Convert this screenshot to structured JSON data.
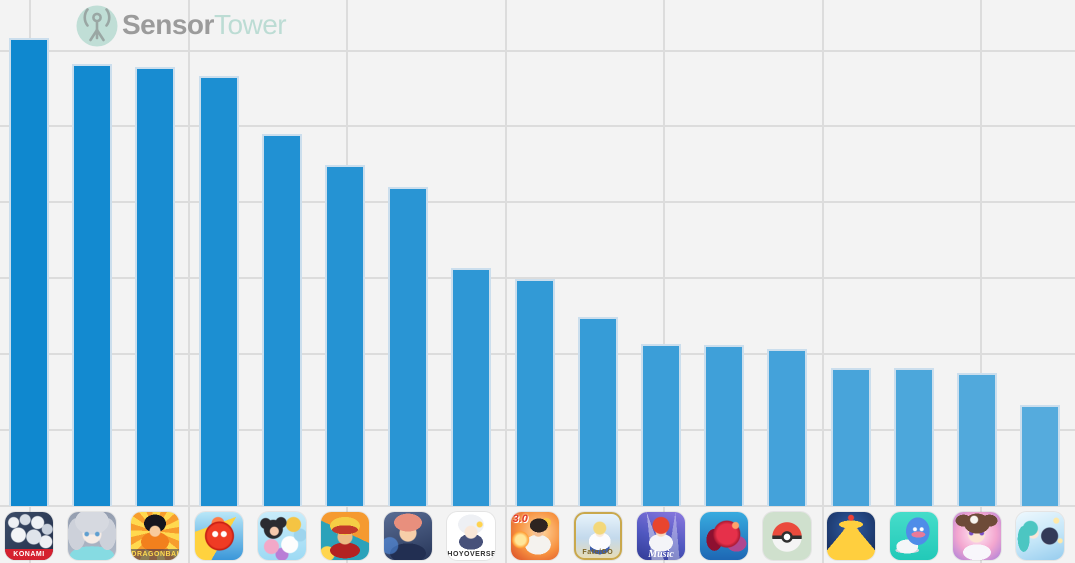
{
  "brand": {
    "logo_text_primary": "Sensor",
    "logo_text_secondary": "Tower",
    "logo_primary_color": "#9b9b9b",
    "logo_secondary_color": "#bcdcd4",
    "logo_circle_color": "#c0ded6",
    "logo_glyph_color": "#9aa7a4"
  },
  "chart_data": {
    "type": "bar",
    "title": "",
    "xlabel": "",
    "ylabel": "",
    "axis_labels_visible": false,
    "legend": null,
    "grid": true,
    "background_color": "#f3f3f3",
    "gridline_color": "#dcdcdc",
    "bar_color_start": "#0f88cf",
    "bar_color_end": "#55abdd",
    "bar_border_color": "#cbdeed",
    "value_units": "relative units (1 = one horizontal gridline interval; y-axis unlabeled in image)",
    "ylim": [
      0,
      6.5
    ],
    "categories": [
      "Pro Baseball Spirits A (KONAMI)",
      "Gakuen iDOLM@STER (silver-haired idol girl)",
      "Dragon Ball Z Dokkan Battle",
      "Monster Strike",
      "LINE: Disney Tsum Tsum",
      "One Piece Treasure Cruise",
      "Jujutsu Kaisen Phantom Parade",
      "Genshin Impact (HOYOVERSE)",
      "RPG app with 3.0 badge",
      "Fate/Grand Order",
      "Ensemble Stars!! Music",
      "Puzzle & Dragons",
      "Pokémon GO",
      "Royal Match",
      "Dragon Quest Walk",
      "Uma Musume Pretty Derby",
      "Project Sekai Colorful Stage"
    ],
    "values": [
      6.17,
      5.82,
      5.78,
      5.66,
      4.9,
      4.49,
      4.2,
      3.14,
      2.99,
      2.49,
      2.14,
      2.12,
      2.07,
      1.82,
      1.82,
      1.75,
      1.33
    ]
  },
  "app_icons": [
    {
      "name": "app-icon-pro-baseball-spirits",
      "label": "Pro Baseball Spirits A (KONAMI)",
      "band_text": "KONAMI",
      "band_bg": "#d5202f",
      "band_color": "#ffffff",
      "band_class": "tiny",
      "bg": "radial-gradient(circle at 18% 22%, #eef1f5 0 5px, transparent 6px), radial-gradient(circle at 42% 16%, #d7dde6 0 5px, transparent 6px), radial-gradient(circle at 68% 22%, #eef1f5 0 6px, transparent 7px), radial-gradient(circle at 88% 36%, #c9d1dd 0 5px, transparent 6px), radial-gradient(circle at 28% 48%, #f2f4f7 0 7px, transparent 8px), radial-gradient(circle at 60% 52%, #dfe4eb 0 7px, transparent 8px), radial-gradient(circle at 85% 62%, #eef0f4 0 6px, transparent 7px), linear-gradient(135deg, #3c4c68 0%, #232f49 100%)"
    },
    {
      "name": "app-icon-idol-girl",
      "label": "Gakuen iDOLM@STER (best guess)",
      "bg": "radial-gradient(circle at 39% 46%, #5f9fd0 0 1.8px, transparent 2.8px), radial-gradient(circle at 61% 46%, #5f9fd0 0 1.8px, transparent 2.8px), radial-gradient(ellipse 17px 13px at 50% 20%, #d6d9e0 0 99%, transparent 100%), radial-gradient(circle at 50% 46%, #f6ece6 0 9px, transparent 10px), radial-gradient(ellipse 9px 16px at 18% 46%, #cdd1da 0 99%, transparent 100%), radial-gradient(ellipse 9px 16px at 82% 46%, #cdd1da 0 99%, transparent 100%), radial-gradient(ellipse 22px 9px at 50% 90%, #86dbe2 0 99%, transparent 100%), linear-gradient(180deg, #939daf 0%, #b3bcca 100%)"
    },
    {
      "name": "app-icon-dokkan-battle",
      "label": "Dragon Ball Z Dokkan Battle",
      "band_text": "DRAGONBALL Z",
      "band_bg": "rgba(25,35,90,0.5)",
      "band_color": "#ffd94f",
      "band_class": "tiny",
      "bg": "radial-gradient(circle at 50% 40%, #f8cb9d 0 5px, transparent 6px), radial-gradient(ellipse 11px 9px at 50% 24%, #16161e 0 99%, transparent 100%), radial-gradient(ellipse 14px 10px at 50% 62%, #f2801d 0 99%, transparent 100%), repeating-conic-gradient(from 0deg at 50% 40%, #ffd94f 0 16deg, #f79d2d 16deg 32deg)"
    },
    {
      "name": "app-icon-monster-strike",
      "label": "Monster Strike",
      "bg": "radial-gradient(circle at 42% 46%, #ffffff 0 2.5px, transparent 3.5px), radial-gradient(circle at 60% 46%, #ffffff 0 2.5px, transparent 3.5px), radial-gradient(circle at 51% 50%, #ef3b24 0 12px, #c01910 14px, transparent 15px), radial-gradient(circle at 48% 24%, #ff7a45 0 6px, transparent 7px), conic-gradient(from 210deg at 86% 10%, #ffd23e 0 40deg, transparent 40deg), linear-gradient(180deg, #b8e7f8 0%, #3a97d9 100%)"
    },
    {
      "name": "app-icon-tsum-tsum",
      "label": "LINE: Disney Tsum Tsum",
      "bg": "radial-gradient(circle at 34% 40%, #f6c9ad 0 4px, transparent 5px), radial-gradient(circle at 32% 36%, #2b2b30 0 9px, transparent 10px), radial-gradient(circle at 16% 24%, #2b2b30 0 5px, transparent 6px), radial-gradient(circle at 48% 22%, #2b2b30 0 5px, transparent 6px), radial-gradient(circle at 74% 26%, #f5c443 0 7px, transparent 8px), radial-gradient(circle at 88% 48%, #9ed4ed 0 6px, transparent 7px), radial-gradient(circle at 66% 68%, #fdfdfd 0 8px, transparent 9px), radial-gradient(circle at 28% 72%, #f2a8c8 0 7px, transparent 8px), radial-gradient(circle at 50% 88%, #b97ed6 0 6px, transparent 7px), linear-gradient(180deg, #c8ecfa 0%, #9ddaf4 100%)"
    },
    {
      "name": "app-icon-one-piece",
      "label": "One Piece Treasure Cruise",
      "bg": "radial-gradient(ellipse 13px 4.5px at 50% 37%, #c23a2a 0 99%, transparent 100%), radial-gradient(ellipse 15px 9px at 50% 29%, #f5ce45 0 99%, transparent 100%), radial-gradient(circle at 50% 52%, #edba84 0 7px, transparent 8px), radial-gradient(ellipse 15px 8px at 50% 80%, #b32222 0 99%, transparent 100%), radial-gradient(circle at 13% 87%, #ffd54e 0 7px, transparent 8px), linear-gradient(205deg, #f59a30 0 44%, #2ba2ba 44%)"
    },
    {
      "name": "app-icon-jujutsu-kaisen",
      "label": "Jujutsu Kaisen Phantom Parade",
      "bg": "radial-gradient(ellipse 14px 9px at 50% 22%, #e88f7d 0 99%, transparent 100%), radial-gradient(circle at 50% 44%, #f6cfa9 0 8px, transparent 9px), radial-gradient(circle at 12% 70%, rgba(90,160,255,0.5) 0 8px, transparent 9px), radial-gradient(ellipse 18px 10px at 50% 86%, #222f52 0 99%, transparent 100%), linear-gradient(160deg, #5a6d94 0%, #273659 100%)"
    },
    {
      "name": "app-icon-genshin-impact",
      "label": "Genshin Impact",
      "band_text": "HOYOVERSE",
      "band_bg": "transparent",
      "band_color": "#2e2e2e",
      "band_class": "tiny",
      "bg": "radial-gradient(circle at 68% 26%, #ffd34e 0 2.5px, transparent 3.5px), radial-gradient(circle at 50% 42%, #fae8d8 0 6px, transparent 7px), radial-gradient(ellipse 13px 10px at 50% 26%, #eef0f4 0 99%, transparent 100%), radial-gradient(ellipse 12px 8px at 50% 62%, #47517a 0 99%, transparent 100%), linear-gradient(#ffffff, #ffffff)"
    },
    {
      "name": "app-icon-rpg-3-0",
      "label": "RPG app with 3.0 version badge",
      "corner_text": "3.0",
      "corner_color": "#e23a28",
      "bg": "radial-gradient(circle at 20% 58%, #ffe699 0 5px, #ff9f36 8px, transparent 9px), radial-gradient(ellipse 9px 7px at 58% 28%, #2e2420 0 99%, transparent 100%), radial-gradient(circle at 57% 40%, #f2bd92 0 5px, transparent 6px), radial-gradient(ellipse 13px 10px at 56% 68%, #f4f2ee 0 99%, transparent 100%), radial-gradient(circle at 74% 22%, #f7c844 0 4px, transparent 5px), radial-gradient(circle at 60% 42%, #ffd9a1 0%, #f79240 55%, #d84a28 100%)"
    },
    {
      "name": "app-icon-fate-grand-order",
      "label": "Fate/Grand Order",
      "border": "2.5px solid #c9a84c",
      "band_text": "Fate/GO",
      "band_bg": "transparent",
      "band_color": "#7d6426",
      "band_class": "tiny",
      "bg": "radial-gradient(circle at 54% 32%, #f3d87a 0 6px, transparent 7px), radial-gradient(circle at 54% 42%, #fae9da 0 4px, transparent 5px), radial-gradient(ellipse 11px 9px at 54% 62%, #fcfcfe 0 99%, transparent 100%), radial-gradient(ellipse 10px 6px at 54% 78%, #3f5fae 0 99%, transparent 100%), linear-gradient(180deg, #e7f3fb 0%, #c3d9ec 55%, #e6dcb8 100%)"
    },
    {
      "name": "app-icon-ensemble-stars-music",
      "label": "Ensemble Stars!! Music",
      "band_text": "Music",
      "band_bg": "transparent",
      "band_color": "#ffffff",
      "band_class": "script",
      "bg": "radial-gradient(circle at 50% 28%, #e8452e 0 8px, transparent 9px), radial-gradient(circle at 50% 40%, #f8d9bd 0 5px, transparent 6px), radial-gradient(ellipse 12px 9px at 50% 64%, #f4f4f8 0 99%, transparent 100%), conic-gradient(from 160deg at 20% 0%, rgba(255,255,255,0.45) 0 14deg, transparent 14deg), conic-gradient(from 175deg at 80% 0%, rgba(255,255,255,0.35) 0 14deg, transparent 14deg), linear-gradient(200deg, #8b79e0 0%, #5058c0 55%, #323c96 100%)"
    },
    {
      "name": "app-icon-puzzle-and-dragons",
      "label": "Puzzle & Dragons",
      "bg": "radial-gradient(circle at 74% 28%, #ffa36a 0 3px, transparent 4px), radial-gradient(circle at 56% 46%, #e6304a 0 10px, #ad1b34 13px, transparent 14px), radial-gradient(ellipse 8px 11px at 30% 58%, #8e1030 0 99%, transparent 100%), radial-gradient(ellipse 10px 8px at 76% 66%, #b0478f 0 99%, transparent 100%), linear-gradient(180deg, #38abdf 0%, #1d67b4 100%)"
    },
    {
      "name": "app-icon-pokemon-go",
      "label": "Pokémon GO",
      "bg": "radial-gradient(circle at 50% 52%, #ffffff 0 3px, #2f2f2f 3.5px 5.5px, transparent 6px), radial-gradient(circle at 50% 52%, transparent 0 14.5px, #cfe0cd 15px), linear-gradient(180deg, transparent 0 49%, #2f2f2f 49% 56%, transparent 56%), conic-gradient(from 90deg at 50% 52%, #f4f4f4 0 180deg, #ea4b3c 180deg), linear-gradient(#cfe0cd, #cfe0cd)"
    },
    {
      "name": "app-icon-royal-match",
      "label": "Royal Match",
      "bg": "radial-gradient(circle at 50% 12%, #ef4136 0 2.5px, transparent 3.5px), conic-gradient(from 140deg at 50% 20%, #ffcf3e 0 80deg, transparent 80deg), radial-gradient(ellipse 12px 4px at 50% 26%, #ffcf3e 0 99%, transparent 100%), radial-gradient(circle at 38% 44%, #3a2c20 0 1.5px, transparent 2.5px), radial-gradient(circle at 62% 44%, #3a2c20 0 1.5px, transparent 2.5px), radial-gradient(circle at 50% 46%, #f0b37e 0 8px, transparent 9px), radial-gradient(ellipse 8px 5px at 50% 58%, #c9742e 0 99%, transparent 100%), radial-gradient(ellipse 13px 10px at 50% 74%, #f2eee6 0 99%, transparent 100%), radial-gradient(circle at 50% 34%, #2f5ca3 0%, #1a3364 75%, #132548 100%)"
    },
    {
      "name": "app-icon-dragon-quest-walk",
      "label": "Dragon Quest Walk",
      "bg": "radial-gradient(circle at 52% 36%, #ffffff 0 1.5px, transparent 2.5px), radial-gradient(circle at 66% 36%, #ffffff 0 1.5px, transparent 2.5px), radial-gradient(ellipse 7px 3px at 59% 47%, #e87a9a 0 99%, transparent 100%), radial-gradient(ellipse 12px 14px at 58% 40%, #4f8de8 0 97%, transparent 100%), radial-gradient(ellipse 11px 7px at 36% 72%, #f4f6f8 0 99%, transparent 100%), radial-gradient(ellipse 12px 3px at 36% 80%, #cfd6dd 0 99%, transparent 100%), linear-gradient(180deg, #46ddca 0%, #22c9b8 100%)"
    },
    {
      "name": "app-icon-uma-musume",
      "label": "Uma Musume Pretty Derby",
      "bg": "radial-gradient(circle at 44% 16%, #f7f4ef 0 3.5px, transparent 4.5px), radial-gradient(ellipse 13px 10px at 50% 24%, #6e4b38 0 99%, transparent 100%), radial-gradient(circle at 38% 44%, #7a4ec7 0 1.8px, transparent 2.8px), radial-gradient(circle at 60% 44%, #7a4ec7 0 1.8px, transparent 2.8px), radial-gradient(circle at 49% 46%, #fbe4d3 0 8px, transparent 9px), radial-gradient(ellipse 8px 6px at 22% 18%, #6e4b38 0 99%, transparent 100%), radial-gradient(ellipse 8px 6px at 76% 18%, #6e4b38 0 99%, transparent 100%), radial-gradient(ellipse 14px 8px at 50% 84%, #f8f6fb 0 99%, transparent 100%), radial-gradient(circle at 50% 45%, #ffeaf5 0%, #f3a6cf 55%, #a97fd9 100%)"
    },
    {
      "name": "app-icon-project-sekai",
      "label": "Project Sekai Colorful Stage (Hatsune Miku)",
      "bg": "radial-gradient(circle at 30% 34%, #4cc6c2 0 7px, transparent 8px), radial-gradient(ellipse 6px 13px at 16% 56%, #4cc6c2 0 99%, transparent 100%), radial-gradient(circle at 36% 44%, #fbe6d8 0 5px, transparent 6px), radial-gradient(circle at 70% 50%, #333a58 0 8px, transparent 9px), radial-gradient(circle at 66% 58%, #fbe6d8 0 4px, transparent 5px), radial-gradient(circle at 84% 18%, #ffe9a8 0 2.5px, transparent 3.5px), radial-gradient(circle at 92% 60%, #ffe9a8 0 2px, transparent 3px), linear-gradient(160deg, #eef8fe 0%, #c4e6f8 55%, #96ccee 100%)"
    }
  ]
}
